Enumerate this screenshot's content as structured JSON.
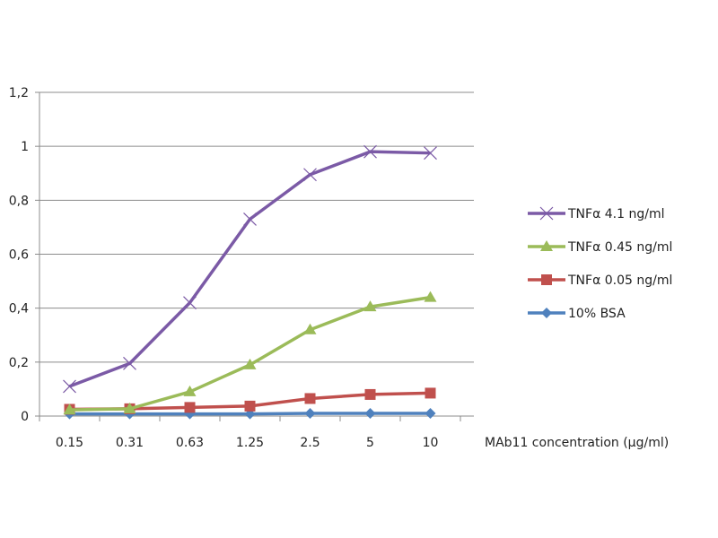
{
  "chart_data": {
    "type": "line",
    "title": "",
    "xlabel": "MAb11 concentration (µg/ml)",
    "ylabel": "",
    "categories": [
      "0.15",
      "0.31",
      "0.63",
      "1.25",
      "2.5",
      "5",
      "10"
    ],
    "ylim": [
      0,
      1.2
    ],
    "yticks": [
      0,
      0.2,
      0.4,
      0.6,
      0.8,
      1,
      1.2
    ],
    "ytick_labels": [
      "0",
      "0,2",
      "0,4",
      "0,6",
      "0,8",
      "1",
      "1,2"
    ],
    "grid": true,
    "legend_position": "right",
    "series": [
      {
        "name": "TNFα  4.1 ng/ml",
        "color": "#7b5aa6",
        "marker": "x",
        "values": [
          0.11,
          0.195,
          0.42,
          0.73,
          0.895,
          0.98,
          0.975
        ]
      },
      {
        "name": "TNFα  0.45 ng/ml",
        "color": "#9bbb59",
        "marker": "triangle",
        "values": [
          0.023,
          0.027,
          0.09,
          0.19,
          0.32,
          0.405,
          0.44
        ]
      },
      {
        "name": "TNFα  0.05 ng/ml",
        "color": "#c0504d",
        "marker": "square",
        "values": [
          0.025,
          0.027,
          0.032,
          0.037,
          0.065,
          0.08,
          0.085
        ]
      },
      {
        "name": "10% BSA",
        "color": "#4f81bd",
        "marker": "diamond",
        "values": [
          0.008,
          0.008,
          0.008,
          0.008,
          0.01,
          0.01,
          0.01
        ]
      }
    ]
  }
}
